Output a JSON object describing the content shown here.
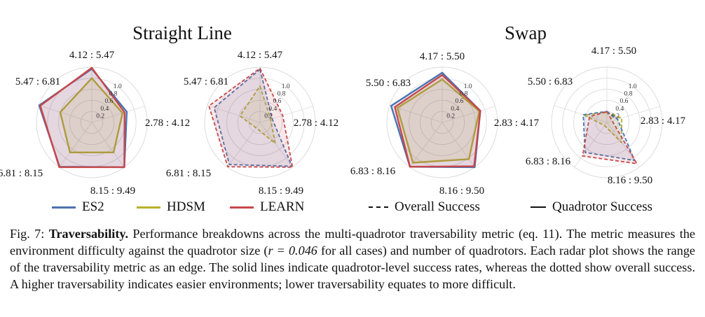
{
  "titles": {
    "straight_line": "Straight Line",
    "swap": "Swap"
  },
  "legend": {
    "items": [
      {
        "label": "ES2",
        "color": "#4a72b0",
        "style": "solid"
      },
      {
        "label": "HDSM",
        "color": "#b8b02a",
        "style": "solid"
      },
      {
        "label": "LEARN",
        "color": "#c8474a",
        "style": "solid"
      },
      {
        "label": "Overall Success",
        "color": "#111111",
        "style": "dashed"
      },
      {
        "label": "Quadrotor Success",
        "color": "#111111",
        "style": "solid"
      }
    ]
  },
  "caption": {
    "fig": "Fig. 7:",
    "bold": "Traversability.",
    "text1": " Performance breakdowns across the multi-quadrotor traversability metric (eq. 11). The metric measures the environment difficulty against the quadrotor size (",
    "math": "r = 0.046",
    "text2": " for all cases) and number of quadrotors. Each radar plot shows the range of the traversability metric as an edge. The solid lines indicate quadrotor-level success rates, whereas the dotted show overall success. A higher traversability indicates easier environments; lower traversability equates to more difficult."
  },
  "chart_data": [
    {
      "type": "radar",
      "group": "Straight Line",
      "success": "Quadrotor Success",
      "axes": [
        "4.12 : 5.47",
        "2.78 : 4.12",
        "8.15 : 9.49",
        "6.81 : 8.15",
        "5.47 : 6.81"
      ],
      "rlim": [
        0,
        1.0
      ],
      "rticks": [
        0.2,
        0.4,
        0.6,
        0.8,
        1.0
      ],
      "series": [
        {
          "name": "ES2",
          "values": [
            0.97,
            0.66,
            1.0,
            0.99,
            1.0
          ]
        },
        {
          "name": "HDSM",
          "values": [
            0.8,
            0.58,
            0.67,
            0.67,
            0.6
          ]
        },
        {
          "name": "LEARN",
          "values": [
            0.99,
            0.62,
            1.0,
            1.0,
            0.98
          ]
        }
      ]
    },
    {
      "type": "radar",
      "group": "Straight Line",
      "success": "Overall Success",
      "axes": [
        "4.12 : 5.47",
        "2.78 : 4.12",
        "8.15 : 9.49",
        "6.81 : 8.15",
        "5.47 : 6.81"
      ],
      "rlim": [
        0,
        1.0
      ],
      "rticks": [
        0.2,
        0.4,
        0.6,
        0.8,
        1.0
      ],
      "series": [
        {
          "name": "ES2",
          "values": [
            0.96,
            0.23,
            0.98,
            0.94,
            0.87
          ]
        },
        {
          "name": "HDSM",
          "values": [
            0.66,
            0.2,
            0.47,
            0.12,
            0.38
          ]
        },
        {
          "name": "LEARN",
          "values": [
            0.98,
            0.43,
            1.0,
            0.99,
            0.97
          ]
        }
      ]
    },
    {
      "type": "radar",
      "group": "Swap",
      "success": "Quadrotor Success",
      "axes": [
        "4.17 : 5.50",
        "2.83 : 4.17",
        "8.16 : 9.50",
        "6.83 : 8.16",
        "5.50 : 6.83"
      ],
      "rlim": [
        0,
        1.0
      ],
      "rticks": [
        0.2,
        0.4,
        0.6,
        0.8,
        1.0
      ],
      "series": [
        {
          "name": "ES2",
          "values": [
            0.9,
            0.72,
            1.0,
            0.99,
            0.97
          ]
        },
        {
          "name": "HDSM",
          "values": [
            0.78,
            0.7,
            0.82,
            0.9,
            0.85
          ]
        },
        {
          "name": "LEARN",
          "values": [
            0.86,
            0.72,
            0.98,
            0.99,
            0.9
          ]
        }
      ]
    },
    {
      "type": "radar",
      "group": "Swap",
      "success": "Overall Success",
      "axes": [
        "4.17 : 5.50",
        "2.83 : 4.17",
        "8.16 : 9.50",
        "6.83 : 8.16",
        "5.50 : 6.83"
      ],
      "rlim": [
        0,
        1.0
      ],
      "rticks": [
        0.2,
        0.4,
        0.6,
        0.8,
        1.0
      ],
      "series": [
        {
          "name": "ES2",
          "values": [
            0.2,
            0.2,
            0.85,
            0.67,
            0.45
          ]
        },
        {
          "name": "HDSM",
          "values": [
            0.18,
            0.28,
            0.45,
            0.07,
            0.43
          ]
        },
        {
          "name": "LEARN",
          "values": [
            0.2,
            0.1,
            0.92,
            0.75,
            0.33
          ]
        }
      ]
    }
  ]
}
